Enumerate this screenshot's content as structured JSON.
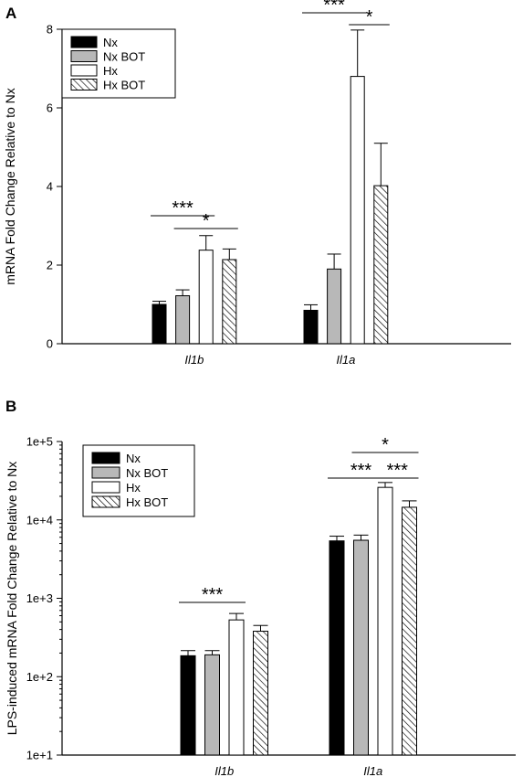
{
  "panels": {
    "a": {
      "label": "A"
    },
    "b": {
      "label": "B"
    }
  },
  "colors": {
    "Nx": "#000000",
    "Nx BOT": "#b8b8b8",
    "Hx": "#ffffff",
    "Hx BOT": "hatch"
  },
  "chart_data": [
    {
      "type": "bar",
      "panel": "A",
      "ylabel": "mRNA Fold Change Relative to Nx",
      "xlabel": "",
      "categories": [
        "Il1b",
        "Il1a"
      ],
      "ylim": [
        0,
        8
      ],
      "yscale": "linear",
      "yticks": [
        0,
        2,
        4,
        6,
        8
      ],
      "ytick_labels": [
        "0",
        "2",
        "4",
        "6",
        "8"
      ],
      "legend_position": "top-left",
      "series": [
        {
          "name": "Nx",
          "values": [
            1.0,
            0.85
          ],
          "errors": [
            0.08,
            0.14
          ]
        },
        {
          "name": "Nx BOT",
          "values": [
            1.22,
            1.9
          ],
          "errors": [
            0.15,
            0.38
          ]
        },
        {
          "name": "Hx",
          "values": [
            2.38,
            6.8
          ],
          "errors": [
            0.37,
            1.18
          ]
        },
        {
          "name": "Hx BOT",
          "values": [
            2.14,
            4.02
          ],
          "errors": [
            0.27,
            1.08
          ]
        }
      ],
      "annotations": [
        {
          "text": "***",
          "category": "Il1b",
          "from": "Nx",
          "to": "Hx"
        },
        {
          "text": "*",
          "category": "Il1b",
          "from": "Nx BOT",
          "to": "Hx BOT"
        },
        {
          "text": "***",
          "category": "Il1a",
          "from": "Nx",
          "to": "Hx"
        },
        {
          "text": "*",
          "category": "Il1a",
          "from": "Hx",
          "to": "Hx BOT"
        }
      ]
    },
    {
      "type": "bar",
      "panel": "B",
      "ylabel": "LPS-induced mRNA Fold Change Relative to Nx",
      "xlabel": "",
      "categories": [
        "Il1b",
        "Il1a"
      ],
      "ylim": [
        10,
        100000
      ],
      "yscale": "log",
      "yticks": [
        10,
        100,
        1000,
        10000,
        100000
      ],
      "ytick_labels": [
        "1e+1",
        "1e+2",
        "1e+3",
        "1e+4",
        "1e+5"
      ],
      "legend_position": "top-left",
      "series": [
        {
          "name": "Nx",
          "values": [
            185,
            5400
          ],
          "errors": [
            30,
            800
          ]
        },
        {
          "name": "Nx BOT",
          "values": [
            190,
            5500
          ],
          "errors": [
            25,
            900
          ]
        },
        {
          "name": "Hx",
          "values": [
            530,
            26000
          ],
          "errors": [
            110,
            4000
          ]
        },
        {
          "name": "Hx BOT",
          "values": [
            380,
            14500
          ],
          "errors": [
            70,
            3000
          ]
        }
      ],
      "annotations": [
        {
          "text": "***",
          "category": "Il1b",
          "from": "Nx",
          "to": "Hx"
        },
        {
          "text": "***",
          "category": "Il1a",
          "from": "Nx",
          "to": "Hx"
        },
        {
          "text": "*",
          "category": "Il1a",
          "from": "Nx BOT",
          "to": "Hx BOT"
        },
        {
          "text": "***",
          "category": "Il1a",
          "from": "Hx",
          "to": "Hx BOT"
        }
      ]
    }
  ]
}
